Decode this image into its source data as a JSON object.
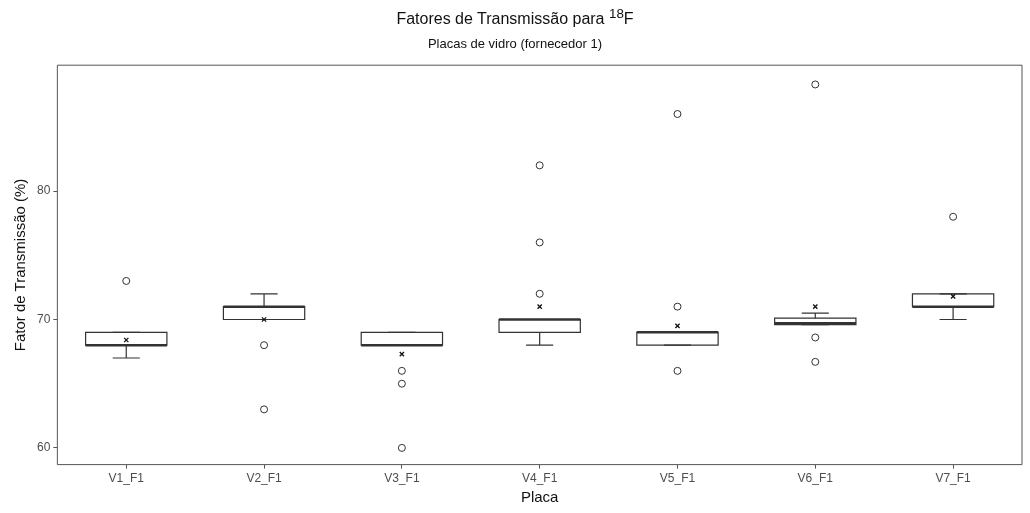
{
  "chart_data": {
    "type": "box",
    "title": "Fatores de Transmissão para $^{18}$F",
    "subtitle": "Placas de vidro (fornecedor 1)",
    "xlabel": "Placa",
    "ylabel": "Fator de Transmissão (%)",
    "categories": [
      "V1_F1",
      "V2_F1",
      "V3_F1",
      "V4_F1",
      "V5_F1",
      "V6_F1",
      "V7_F1"
    ],
    "boxes": [
      {
        "low": 67,
        "q1": 68,
        "median": 68,
        "q3": 69,
        "high": 69,
        "mean": 68.4,
        "outliers": [
          73
        ]
      },
      {
        "low": 70,
        "q1": 70,
        "median": 71,
        "q3": 71,
        "high": 72,
        "mean": 70,
        "outliers": [
          68,
          63
        ]
      },
      {
        "low": 68,
        "q1": 68,
        "median": 68,
        "q3": 69,
        "high": 69,
        "mean": 67.3,
        "outliers": [
          66,
          65,
          60
        ]
      },
      {
        "low": 68,
        "q1": 69,
        "median": 70,
        "q3": 70,
        "high": 70,
        "mean": 71,
        "outliers": [
          72,
          76,
          82
        ]
      },
      {
        "low": 68,
        "q1": 68,
        "median": 69,
        "q3": 69,
        "high": 69,
        "mean": 69.5,
        "outliers": [
          71,
          66,
          86
        ]
      },
      {
        "low": 69.6,
        "q1": 69.6,
        "median": 69.7,
        "q3": 70.1,
        "high": 70.5,
        "mean": 71,
        "outliers": [
          68.6,
          66.7,
          88.3
        ]
      },
      {
        "low": 70,
        "q1": 71,
        "median": 71,
        "q3": 72,
        "high": 72,
        "mean": 71.8,
        "outliers": [
          78
        ]
      }
    ],
    "color": "#333333",
    "ylim": [
      58.7,
      89.8
    ],
    "yticks": [
      60,
      70,
      80
    ],
    "grid": false
  }
}
